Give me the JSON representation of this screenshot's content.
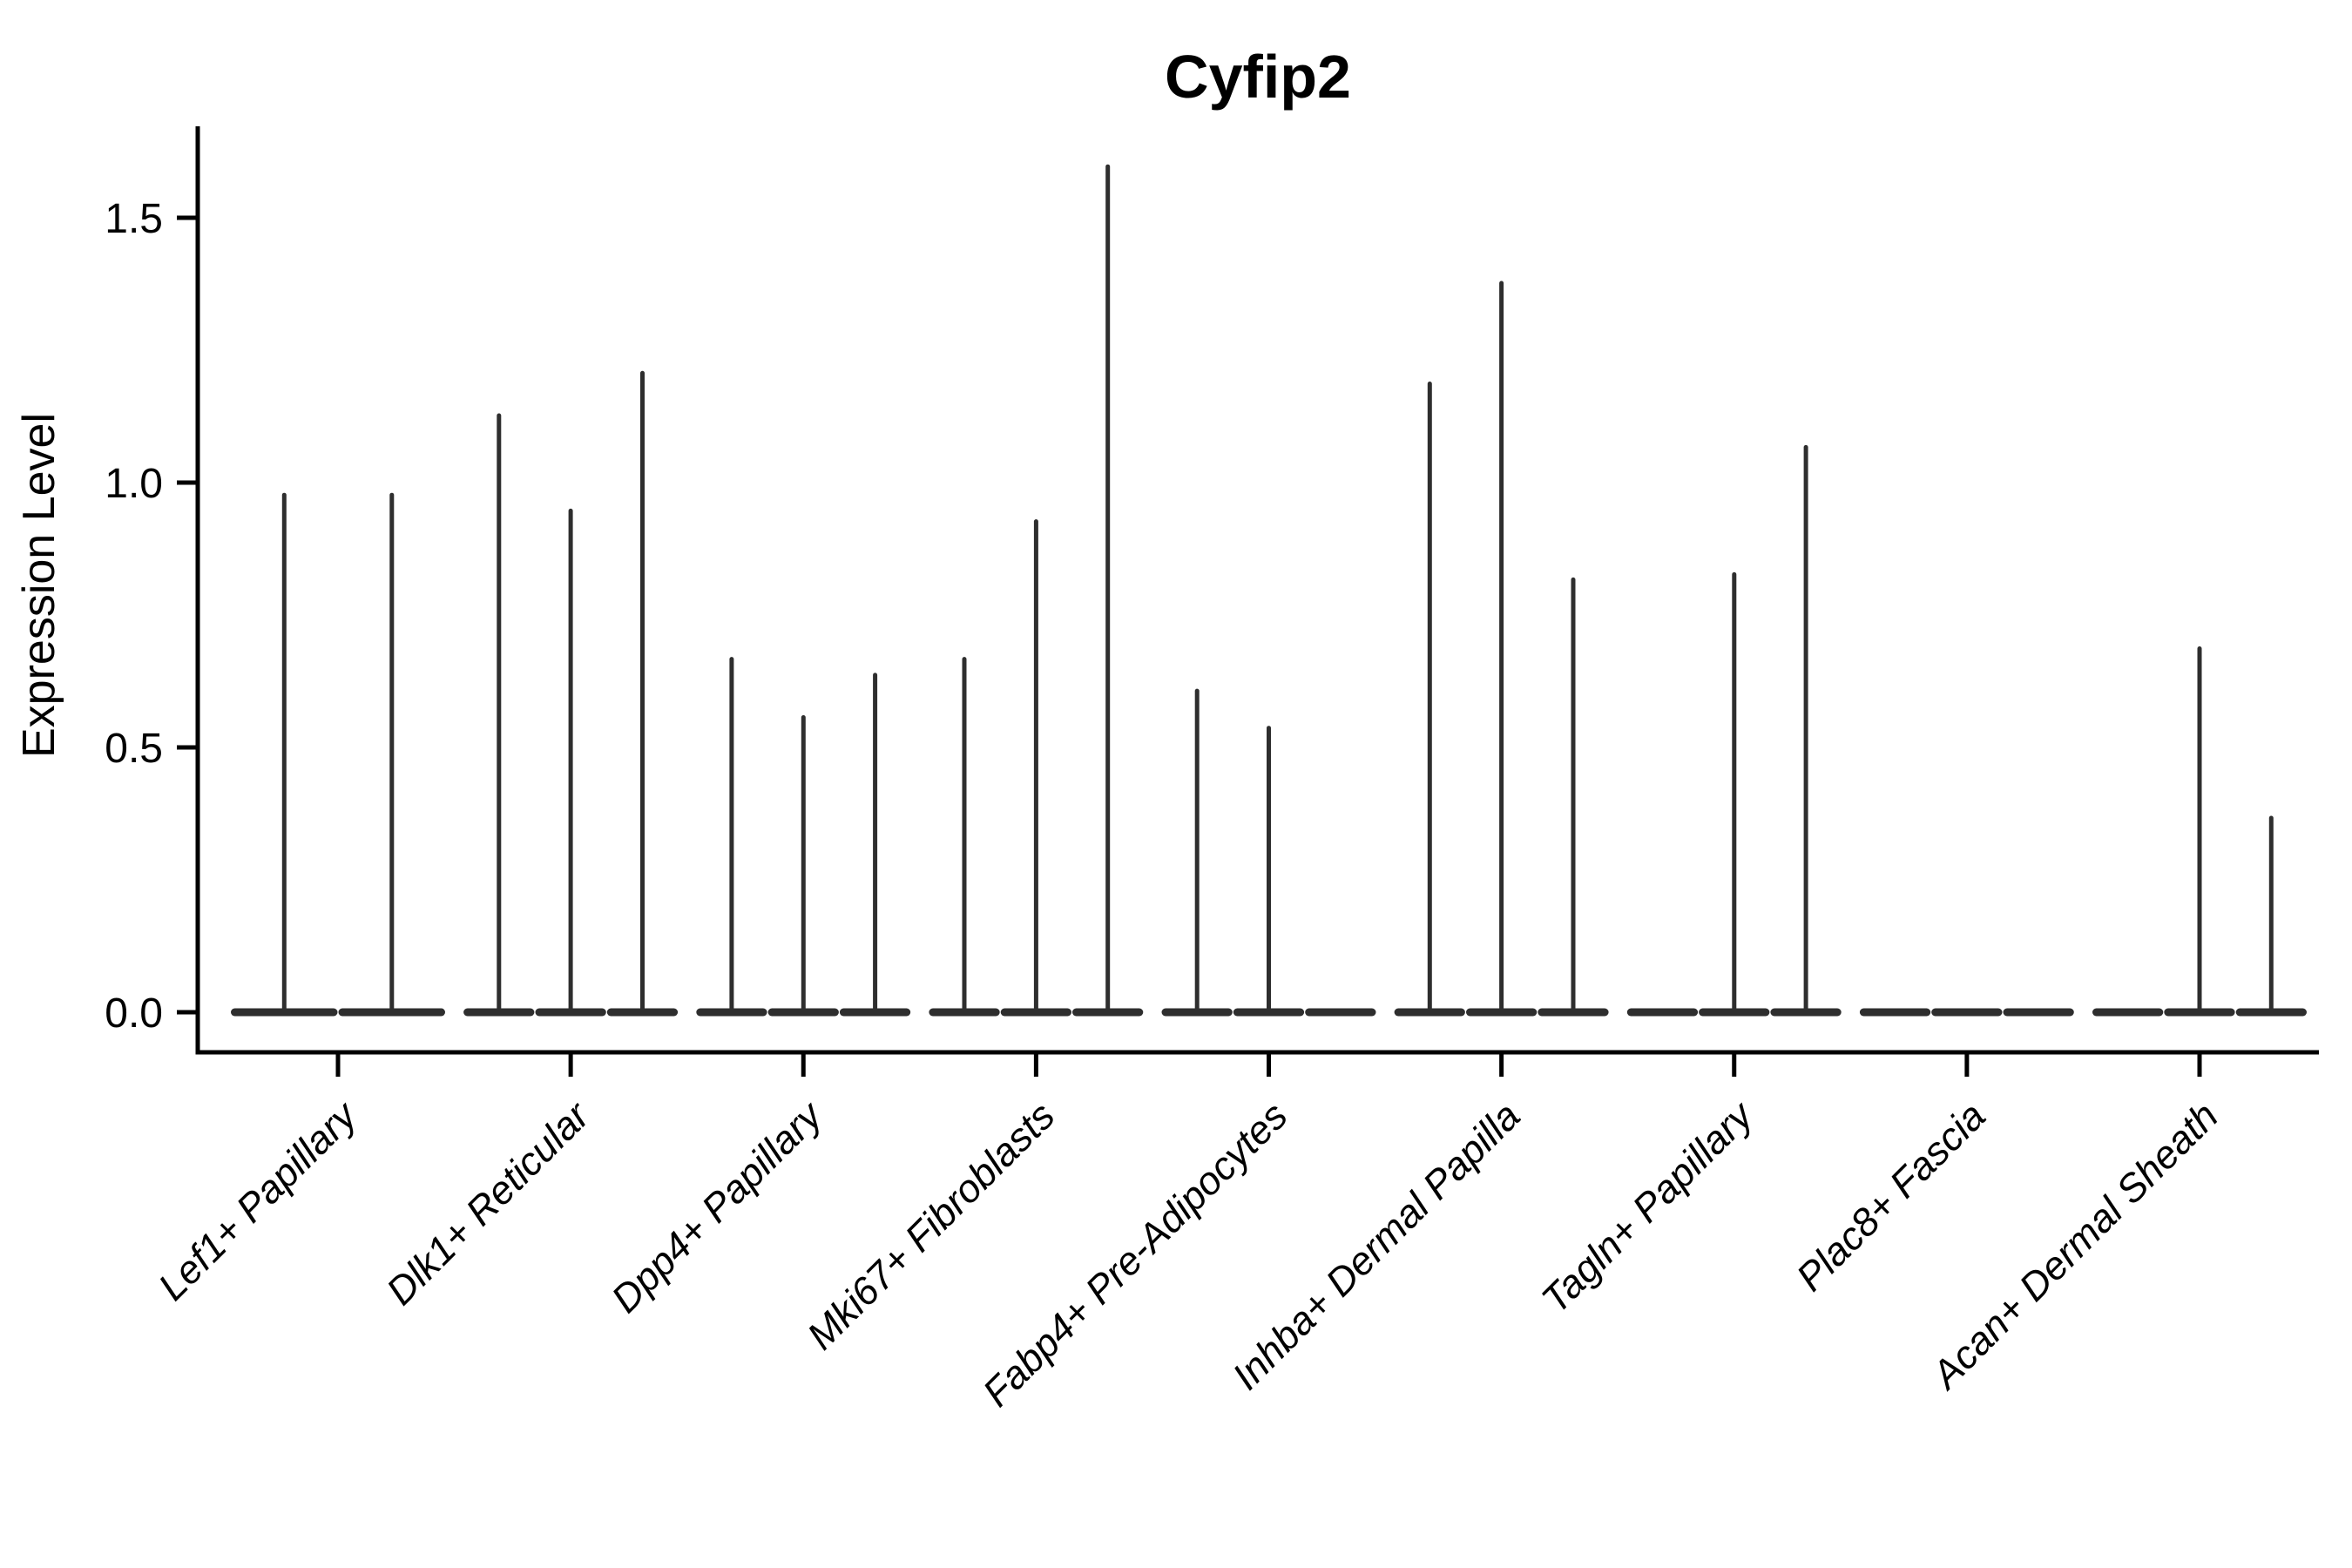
{
  "figure": {
    "background": "#ffffff"
  },
  "chart_data": {
    "type": "violin",
    "title": "Cyfip2",
    "ylabel": "Expression Level",
    "xlabel": "",
    "grid": false,
    "legend": "none",
    "axis_color": "#000000",
    "violin_color": "#2e2e2e",
    "ylim": [
      -0.08,
      1.67
    ],
    "yticks": [
      0.0,
      0.5,
      1.0,
      1.5
    ],
    "ytick_labels": [
      "0.0",
      "0.5",
      "1.0",
      "1.5"
    ],
    "x_label_rotation_deg": 45,
    "categories": [
      "Lef1+ Papillary",
      "Dlk1+ Reticular",
      "Dpp4+ Papillary",
      "Mki67+ Fibroblasts",
      "Fabp4+ Pre-Adipocytes",
      "Inhba+ Dermal Papilla",
      "Tagln+ Papillary",
      "Plac8+ Fascia",
      "Acan+ Dermal Sheath"
    ],
    "series": [
      {
        "category": "Lef1+ Papillary",
        "violin_maxima": [
          0.98,
          0.98
        ]
      },
      {
        "category": "Dlk1+ Reticular",
        "violin_maxima": [
          1.13,
          0.95,
          1.21
        ]
      },
      {
        "category": "Dpp4+ Papillary",
        "violin_maxima": [
          0.67,
          0.56,
          0.64
        ]
      },
      {
        "category": "Mki67+ Fibroblasts",
        "violin_maxima": [
          0.67,
          0.93,
          1.6
        ]
      },
      {
        "category": "Fabp4+ Pre-Adipocytes",
        "violin_maxima": [
          0.61,
          0.54,
          0.0
        ]
      },
      {
        "category": "Inhba+ Dermal Papilla",
        "violin_maxima": [
          1.19,
          1.38,
          0.82
        ]
      },
      {
        "category": "Tagln+ Papillary",
        "violin_maxima": [
          0.0,
          0.83,
          1.07
        ]
      },
      {
        "category": "Plac8+ Fascia",
        "violin_maxima": [
          0.0,
          0.0,
          0.0
        ]
      },
      {
        "category": "Acan+ Dermal Sheath",
        "violin_maxima": [
          0.0,
          0.69,
          0.37
        ]
      }
    ]
  }
}
